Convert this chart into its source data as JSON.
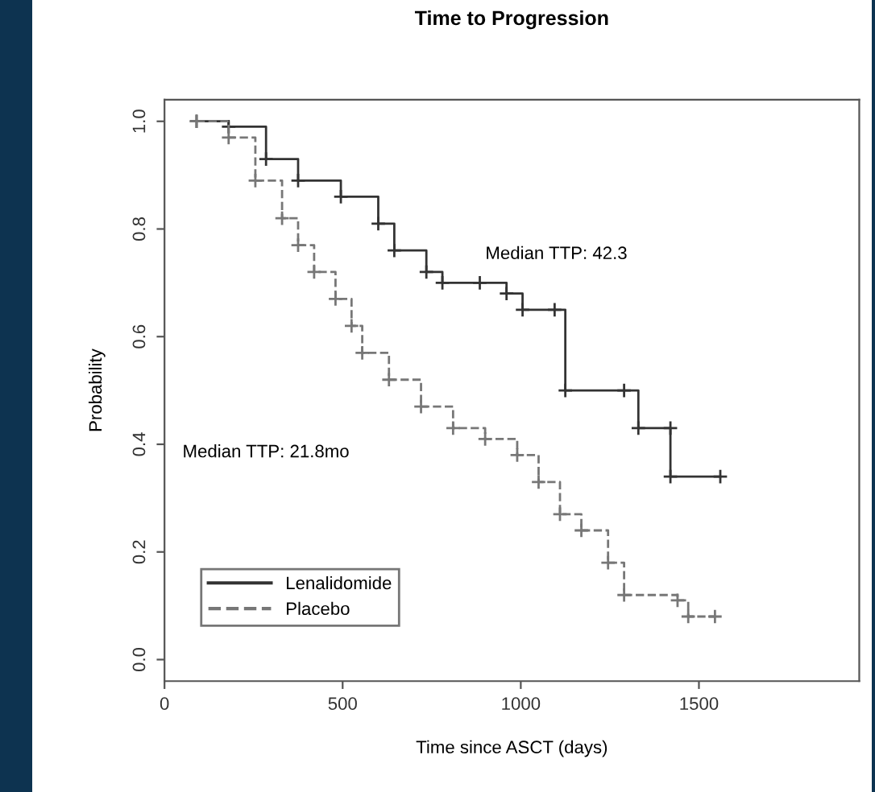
{
  "chart_data": {
    "type": "step",
    "title": "Time to Progression",
    "xlabel": "Time since ASCT (days)",
    "ylabel": "Probability",
    "series": [
      {
        "name": "Lenalidomide",
        "color": "#333333",
        "line_style": "solid",
        "x": [
          90,
          180,
          285,
          375,
          495,
          600,
          645,
          735,
          780,
          885,
          960,
          1005,
          1095,
          1125,
          1290,
          1330,
          1420,
          1420,
          1560
        ],
        "values": [
          1.0,
          0.99,
          0.93,
          0.89,
          0.86,
          0.81,
          0.76,
          0.72,
          0.7,
          0.7,
          0.68,
          0.65,
          0.65,
          0.5,
          0.5,
          0.43,
          0.43,
          0.34,
          0.34
        ]
      },
      {
        "name": "Placebo",
        "color": "#777777",
        "line_style": "dashed",
        "x": [
          90,
          180,
          255,
          330,
          375,
          420,
          480,
          525,
          555,
          630,
          720,
          810,
          900,
          990,
          1050,
          1110,
          1170,
          1245,
          1290,
          1440,
          1470,
          1545
        ],
        "values": [
          1.0,
          0.97,
          0.89,
          0.82,
          0.77,
          0.72,
          0.67,
          0.62,
          0.57,
          0.52,
          0.47,
          0.43,
          0.41,
          0.38,
          0.33,
          0.27,
          0.24,
          0.18,
          0.12,
          0.11,
          0.08,
          0.08
        ]
      }
    ],
    "annotations": [
      "Median TTP: 42.3",
      "Median TTP: 21.8mo"
    ],
    "xlim": [
      0,
      1950
    ],
    "xticks": [
      0,
      500,
      1000,
      1500
    ],
    "ylim": [
      -0.04,
      1.04
    ],
    "yticks": [
      {
        "value": 0,
        "label": "0.0"
      },
      {
        "value": 0.2,
        "label": "0.2"
      },
      {
        "value": 0.4,
        "label": "0.4"
      },
      {
        "value": 0.6,
        "label": "0.6"
      },
      {
        "value": 0.8,
        "label": "0.8"
      },
      {
        "value": 1,
        "label": "1.0"
      }
    ],
    "marker": "cross",
    "grid": false,
    "legend": "bottom left"
  }
}
